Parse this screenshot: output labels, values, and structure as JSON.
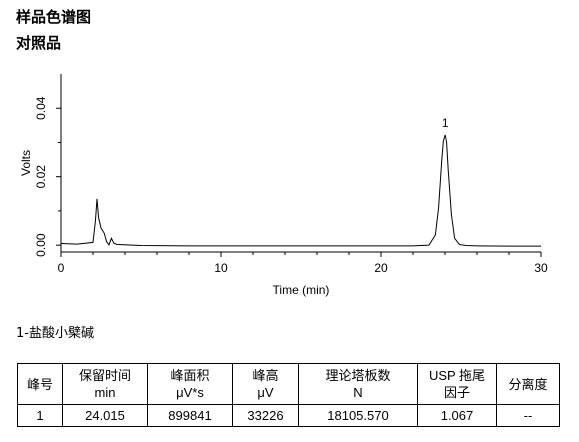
{
  "report": {
    "title": "样品色谱图",
    "subtitle": "对照品"
  },
  "chart_data": {
    "type": "line",
    "xlabel": "Time (min)",
    "ylabel": "Volts",
    "xlim": [
      0,
      30
    ],
    "ylim": [
      -0.002,
      0.05
    ],
    "x_ticks": [
      0,
      10,
      20,
      30
    ],
    "y_ticks": [
      0.0,
      0.02,
      0.04
    ],
    "y_tick_labels": [
      "0.00",
      "0.02",
      "0.04"
    ],
    "grid": false,
    "series": [
      {
        "x": [
          0.0,
          1.0,
          2.0,
          2.15,
          2.25,
          2.35,
          2.5,
          2.7,
          2.85,
          3.0,
          3.15,
          3.3,
          3.5,
          4.0,
          5.0,
          8.0,
          11.0,
          15.0,
          20.0,
          22.0,
          23.0,
          23.4,
          23.6,
          23.8,
          23.9,
          24.015,
          24.1,
          24.2,
          24.4,
          24.6,
          24.9,
          25.3,
          26.0,
          28.0,
          30.0
        ],
        "y": [
          0.0005,
          0.0003,
          0.0008,
          0.007,
          0.0135,
          0.008,
          0.005,
          0.0035,
          0.001,
          0.0001,
          0.002,
          0.0006,
          0.0002,
          0.0001,
          -0.0001,
          -0.0002,
          -0.0002,
          -0.0002,
          -0.0002,
          -0.0002,
          0.0,
          0.003,
          0.011,
          0.025,
          0.0305,
          0.0322,
          0.03,
          0.022,
          0.009,
          0.002,
          0.0002,
          -0.0001,
          -0.0002,
          -0.0003,
          -0.0003
        ]
      }
    ],
    "annotations": [
      {
        "x": 24.015,
        "y": 0.0322,
        "text": "1"
      }
    ]
  },
  "peak_name": "1-盐酸小檗碱",
  "results_table": {
    "headers": [
      [
        "峰号"
      ],
      [
        "保留时间",
        "min"
      ],
      [
        "峰面积",
        "μV*s"
      ],
      [
        "峰高",
        "μV"
      ],
      [
        "理论塔板数",
        "N"
      ],
      [
        "USP 拖尾",
        "因子"
      ],
      [
        "分离度"
      ]
    ],
    "rows": [
      [
        "1",
        "24.015",
        "899841",
        "33226",
        "18105.570",
        "1.067",
        "--"
      ]
    ]
  }
}
